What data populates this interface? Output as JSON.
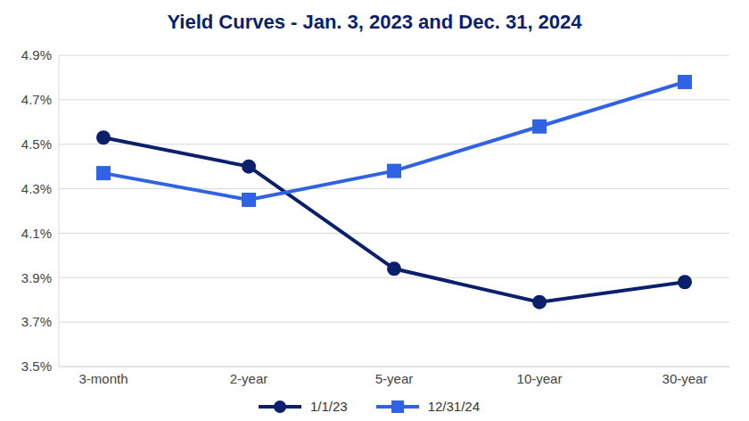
{
  "chart_data": {
    "type": "line",
    "title": "Yield Curves - Jan. 3, 2023 and Dec. 31, 2024",
    "categories": [
      "3-month",
      "2-year",
      "5-year",
      "10-year",
      "30-year"
    ],
    "series": [
      {
        "name": "1/1/23",
        "color": "#0b1f6b",
        "marker": "circle",
        "values": [
          4.53,
          4.4,
          3.94,
          3.79,
          3.88
        ]
      },
      {
        "name": "12/31/24",
        "color": "#2f63e3",
        "marker": "square",
        "values": [
          4.37,
          4.25,
          4.38,
          4.58,
          4.78
        ]
      }
    ],
    "ylim": [
      3.5,
      4.9
    ],
    "yticks": [
      {
        "value": 3.5,
        "label": "3.5%"
      },
      {
        "value": 3.7,
        "label": "3.7%"
      },
      {
        "value": 3.9,
        "label": "3.9%"
      },
      {
        "value": 4.1,
        "label": "4.1%"
      },
      {
        "value": 4.3,
        "label": "4.3%"
      },
      {
        "value": 4.5,
        "label": "4.5%"
      },
      {
        "value": 4.7,
        "label": "4.7%"
      },
      {
        "value": 4.9,
        "label": "4.9%"
      }
    ],
    "grid": true,
    "legend": "bottom"
  }
}
